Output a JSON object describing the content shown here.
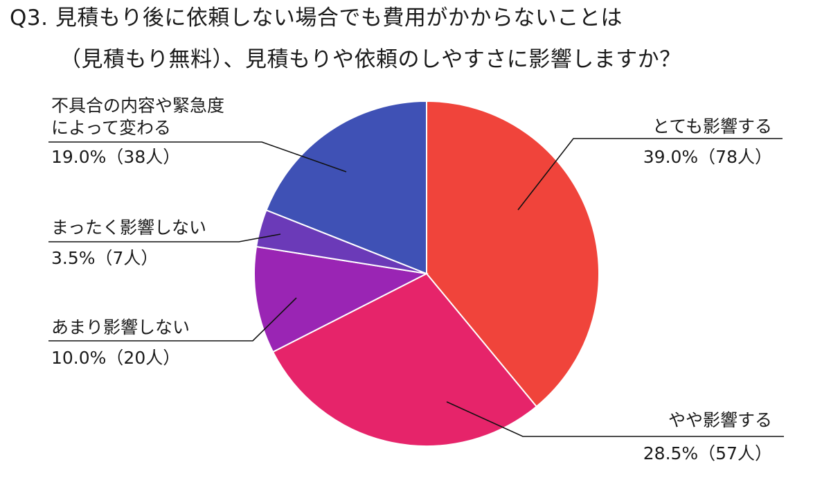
{
  "title": {
    "line1": "Q3. 見積もり後に依頼しない場合でも費用がかからないことは",
    "line2": "（見積もり無料）、見積もりや依頼のしやすさに影響しますか？"
  },
  "chart_data": {
    "type": "pie",
    "start": "12 o'clock",
    "direction": "clockwise",
    "slices": [
      {
        "label": "とても影響する",
        "value": 39.0,
        "count": 78,
        "pct_text": "39.0%（78人）",
        "color": "#f0443b"
      },
      {
        "label": "やや影響する",
        "value": 28.5,
        "count": 57,
        "pct_text": "28.5%（57人）",
        "color": "#e6246a"
      },
      {
        "label": "あまり影響しない",
        "value": 10.0,
        "count": 20,
        "pct_text": "10.0%（20人）",
        "color": "#9a25b4"
      },
      {
        "label": "まったく影響しない",
        "value": 3.5,
        "count": 7,
        "pct_text": "3.5%（7人）",
        "color": "#6b3ab8"
      },
      {
        "label_line1": "不具合の内容や緊急度",
        "label_line2": "によって変わる",
        "label": "不具合の内容や緊急度によって変わる",
        "value": 19.0,
        "count": 38,
        "pct_text": "19.0%（38人）",
        "color": "#3f51b5"
      }
    ]
  }
}
